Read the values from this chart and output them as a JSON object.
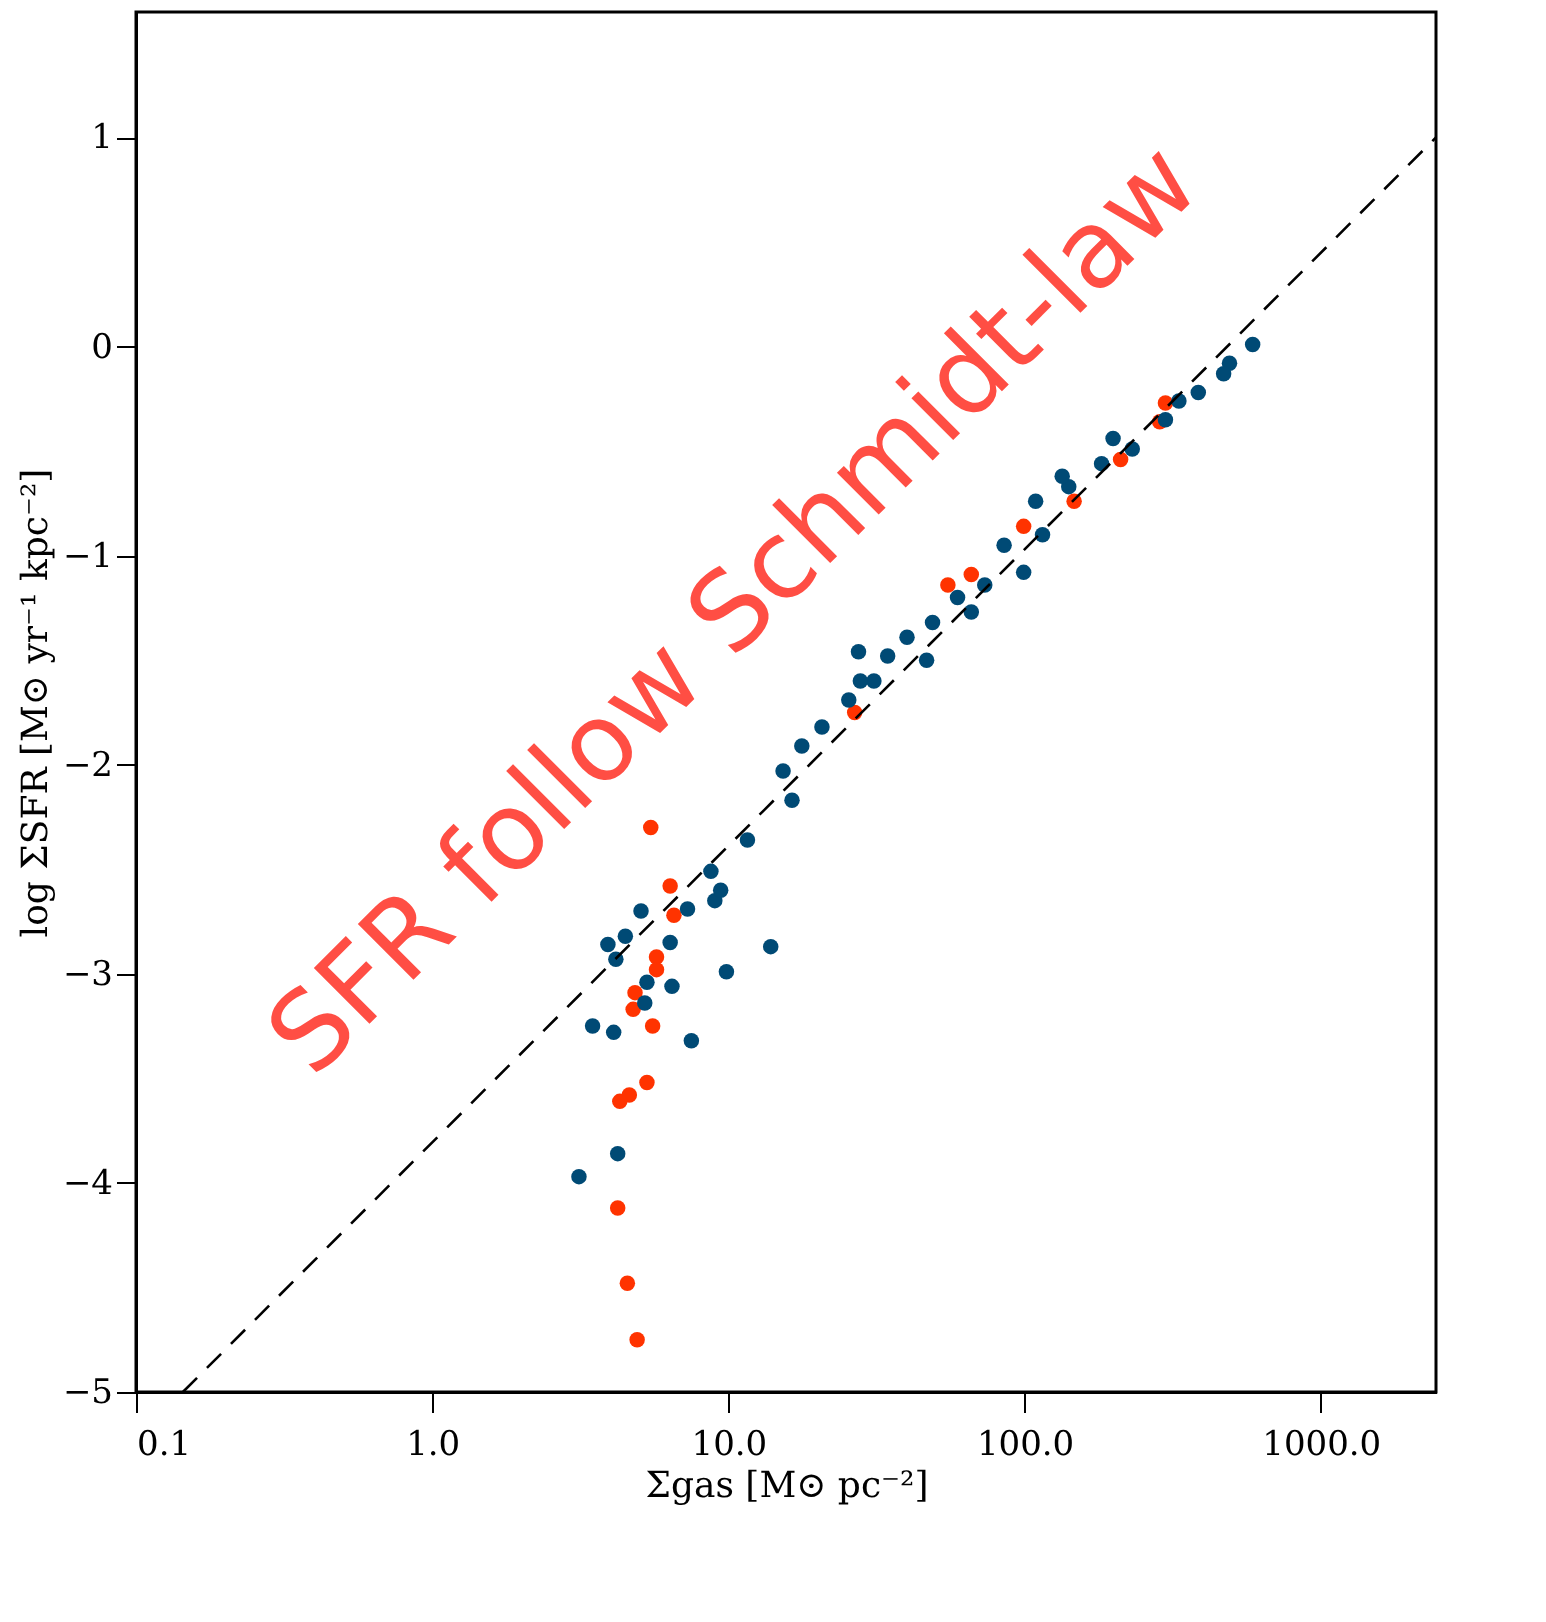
{
  "chart_data": {
    "type": "scatter",
    "xlabel": "Σgas [M⊙ pc⁻²]",
    "ylabel": "log ΣSFR [M⊙ yr⁻¹ kpc⁻²]",
    "annotations": [
      "SFR follow Schmidt-law"
    ],
    "log": "x",
    "grid": false,
    "xlim": [
      0.1,
      2450
    ],
    "ylim": [
      -5,
      1.6
    ],
    "xticks": [
      {
        "value": 0.1,
        "label": "0.1"
      },
      {
        "value": 1,
        "label": "1.0"
      },
      {
        "value": 10,
        "label": "10.0"
      },
      {
        "value": 100,
        "label": "100.0"
      },
      {
        "value": 1000,
        "label": "1000.0"
      }
    ],
    "yticks": [
      {
        "value": -5,
        "label": "−5"
      },
      {
        "value": -4,
        "label": "−4"
      },
      {
        "value": -3,
        "label": "−3"
      },
      {
        "value": -2,
        "label": "−2"
      },
      {
        "value": -1,
        "label": "−1"
      },
      0,
      1
    ],
    "series": [
      {
        "marker": "circle",
        "color": "#ff3300",
        "x": [
          5.47,
          6.36,
          6.55,
          5.72,
          5.72,
          4.84,
          4.77,
          5.55,
          5.31,
          4.63,
          4.3,
          4.23,
          4.56,
          4.92,
          55.1,
          99.3,
          66.1,
          26.7,
          299,
          211,
          147,
          286
        ],
        "values": [
          -2.3,
          -2.58,
          -2.72,
          -2.92,
          -2.98,
          -3.09,
          -3.17,
          -3.25,
          -3.52,
          -3.58,
          -3.61,
          -4.12,
          -4.48,
          -4.75,
          -1.14,
          -0.86,
          -1.09,
          -1.75,
          -0.27,
          -0.54,
          -0.74,
          -0.36
        ]
      },
      {
        "marker": "circle",
        "color": "#004a75",
        "x": [
          5.07,
          3.92,
          4.49,
          4.17,
          6.36,
          7.28,
          13.9,
          9.85,
          6.45,
          5.31,
          5.22,
          3.48,
          4.1,
          7.5,
          4.23,
          3.13,
          9.0,
          9.42,
          8.73,
          11.6,
          16.4,
          589,
          492,
          386,
          299,
          231,
          182,
          141,
          109,
          115,
          85.3,
          99.3,
          73.4,
          59.4,
          48.9,
          40.1,
          34.5,
          27.5,
          31.0,
          25.5,
          20.7,
          17.7,
          15.3,
          27.9,
          46.7,
          66.1,
          134,
          199,
          332,
          470
        ],
        "values": [
          -2.7,
          -2.86,
          -2.82,
          -2.93,
          -2.85,
          -2.69,
          -2.87,
          -2.99,
          -3.06,
          -3.04,
          -3.14,
          -3.25,
          -3.28,
          -3.32,
          -3.86,
          -3.97,
          -2.65,
          -2.6,
          -2.51,
          -2.36,
          -2.17,
          0.01,
          -0.08,
          -0.22,
          -0.35,
          -0.49,
          -0.56,
          -0.67,
          -0.74,
          -0.9,
          -0.95,
          -1.08,
          -1.14,
          -1.2,
          -1.32,
          -1.39,
          -1.48,
          -1.46,
          -1.6,
          -1.69,
          -1.82,
          -1.91,
          -2.03,
          -1.6,
          -1.5,
          -1.27,
          -0.62,
          -0.44,
          -0.26,
          -0.13
        ]
      },
      {
        "type": "line",
        "color": "#000000",
        "line_style": "dashed",
        "x": [
          0.144,
          2450
        ],
        "values": [
          -5,
          1.0
        ]
      }
    ]
  }
}
